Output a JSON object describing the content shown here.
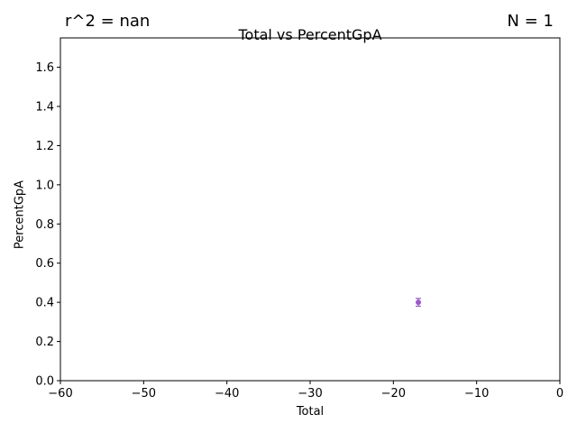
{
  "annotations": {
    "left": "r^2 = nan",
    "right": "N = 1"
  },
  "chart_data": {
    "type": "scatter",
    "title": "Total vs PercentGpA",
    "xlabel": "Total",
    "ylabel": "PercentGpA",
    "xlim": [
      -60,
      0
    ],
    "ylim": [
      0,
      1.75
    ],
    "xticks": [
      -60,
      -50,
      -40,
      -30,
      -20,
      -10,
      0
    ],
    "xtick_labels": [
      "−60",
      "−50",
      "−40",
      "−30",
      "−20",
      "−10",
      "0"
    ],
    "yticks": [
      0,
      0.2,
      0.4,
      0.6,
      0.8,
      1.0,
      1.2,
      1.4,
      1.6
    ],
    "ytick_labels": [
      "0.0",
      "0.2",
      "0.4",
      "0.6",
      "0.8",
      "1.0",
      "1.2",
      "1.4",
      "1.6"
    ],
    "grid": false,
    "points": [
      {
        "x": -17,
        "y": 0.4,
        "yerr": 0.02
      }
    ],
    "colors": {
      "marker": "#9b59c8",
      "axis": "#000000"
    }
  }
}
